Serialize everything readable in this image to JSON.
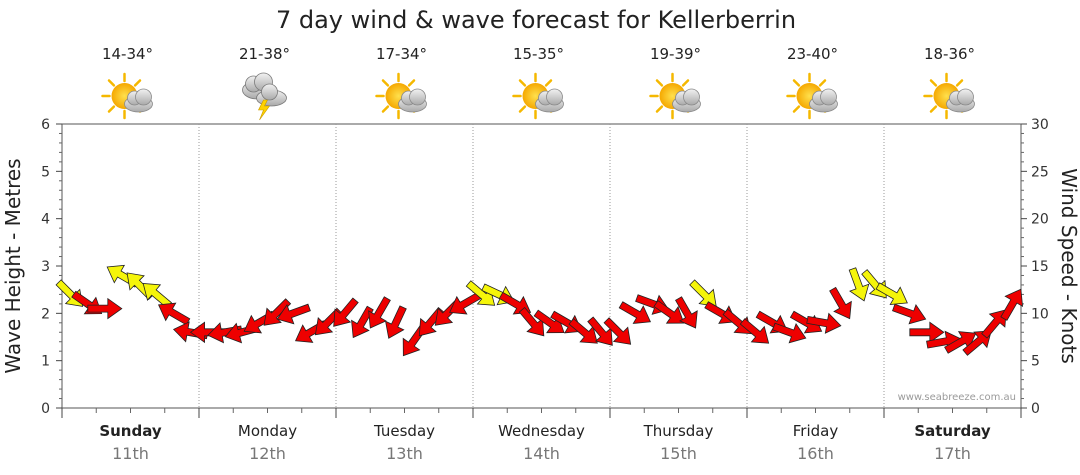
{
  "chart_data": {
    "type": "line",
    "title": "7 day wind & wave forecast for Kellerberrin",
    "ylabel_left": "Wave Height - Metres",
    "ylabel_right": "Wind Speed - Knots",
    "ylim_left": [
      0,
      6
    ],
    "ylim_right": [
      0,
      30
    ],
    "yticks_left": [
      "0",
      "1",
      "2",
      "3",
      "4",
      "5",
      "6"
    ],
    "yticks_right": [
      "0",
      "5",
      "10",
      "15",
      "20",
      "25",
      "30"
    ],
    "watermark": "www.seabreeze.com.au",
    "grid": true,
    "days": [
      {
        "name": "Sunday",
        "date": "11th",
        "temp": "14-34°",
        "icon": "sun-cloud-icon",
        "bold": true
      },
      {
        "name": "Monday",
        "date": "12th",
        "temp": "21-38°",
        "icon": "storm-icon",
        "bold": false
      },
      {
        "name": "Tuesday",
        "date": "13th",
        "temp": "17-34°",
        "icon": "sun-cloud-icon",
        "bold": false
      },
      {
        "name": "Wednesday",
        "date": "14th",
        "temp": "15-35°",
        "icon": "sun-cloud-icon",
        "bold": false
      },
      {
        "name": "Thursday",
        "date": "15th",
        "temp": "19-39°",
        "icon": "sun-cloud-icon",
        "bold": false
      },
      {
        "name": "Friday",
        "date": "16th",
        "temp": "23-40°",
        "icon": "sun-cloud-icon",
        "bold": false
      },
      {
        "name": "Saturday",
        "date": "17th",
        "temp": "18-36°",
        "icon": "sun-cloud-icon",
        "bold": true
      }
    ],
    "wind_series": {
      "name": "",
      "units": "knots",
      "x_unit": "hours from start",
      "x": [
        0,
        3,
        6,
        9,
        12,
        15,
        18,
        21,
        24,
        27,
        30,
        33,
        36,
        39,
        42,
        45,
        48,
        51,
        54,
        57,
        60,
        63,
        66,
        69,
        72,
        75,
        78,
        81,
        84,
        87,
        90,
        93,
        96,
        99,
        102,
        105,
        108,
        111,
        114,
        117,
        120,
        123,
        126,
        129,
        132,
        135,
        138,
        141,
        144,
        147,
        150,
        153,
        156,
        159,
        162,
        165
      ],
      "speed": [
        12,
        11,
        10.5,
        14,
        13,
        12,
        10,
        8,
        8,
        8,
        8,
        9,
        10,
        10,
        8,
        9,
        10,
        9,
        10,
        9,
        7,
        9,
        10,
        11,
        12,
        12,
        11,
        9,
        9,
        9,
        8,
        8,
        8,
        10,
        11,
        10,
        10,
        12,
        10,
        9,
        8,
        9,
        8,
        9,
        9,
        11,
        13,
        13,
        12,
        10,
        8,
        7,
        7,
        7,
        9,
        11
      ],
      "direction_deg": [
        315,
        305,
        270,
        120,
        135,
        130,
        120,
        100,
        90,
        80,
        75,
        60,
        45,
        70,
        60,
        45,
        40,
        30,
        30,
        25,
        35,
        40,
        45,
        60,
        310,
        295,
        300,
        320,
        305,
        300,
        310,
        320,
        315,
        300,
        290,
        305,
        330,
        315,
        300,
        310,
        310,
        300,
        290,
        300,
        280,
        330,
        340,
        320,
        300,
        290,
        270,
        260,
        240,
        230,
        220,
        210
      ],
      "color_yellow": "#f5f50a",
      "color_red": "#ee0000",
      "yellow_threshold_knots": 12
    }
  }
}
